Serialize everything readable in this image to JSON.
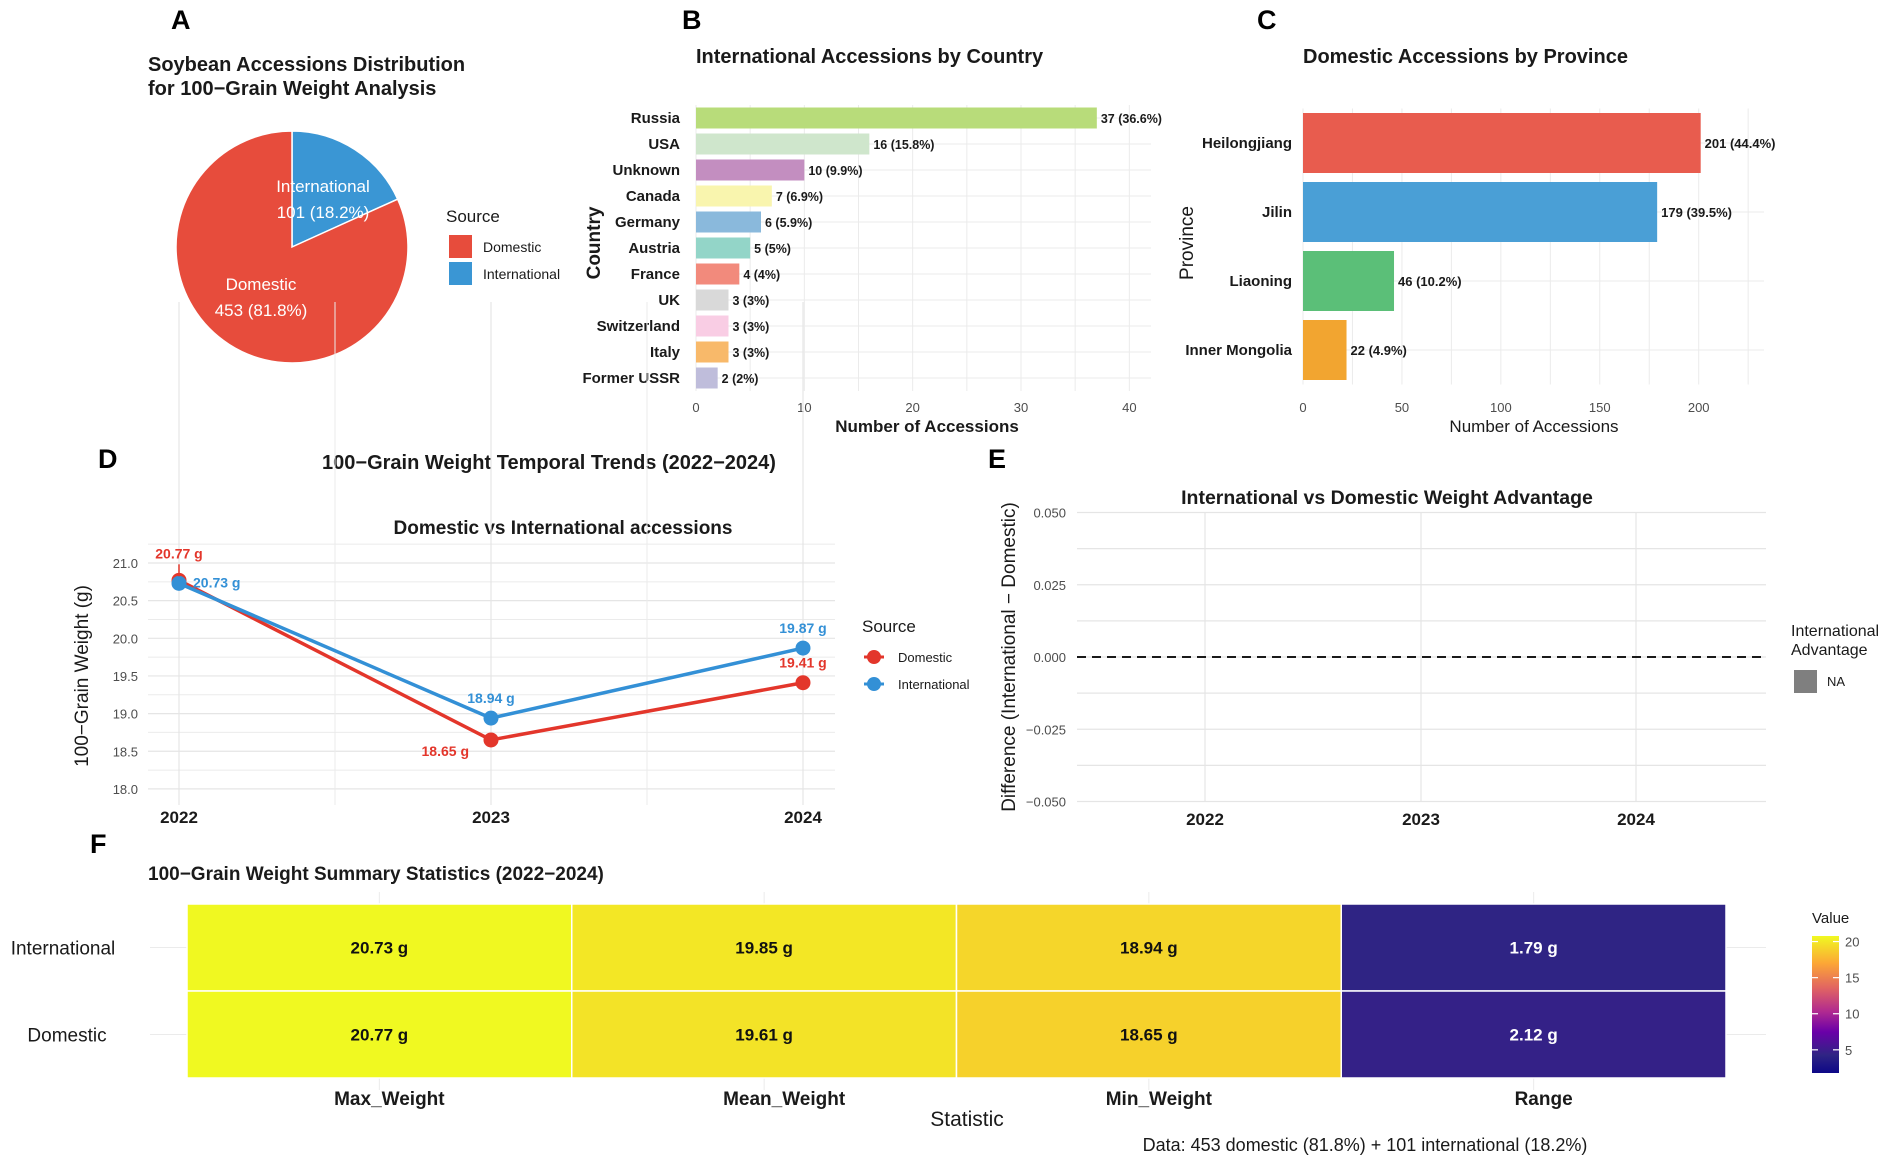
{
  "figure": {
    "panel_letters": [
      "A",
      "B",
      "C",
      "D",
      "E",
      "F"
    ]
  },
  "chart_data": [
    {
      "id": "A",
      "type": "pie",
      "title_lines": [
        "Soybean Accessions Distribution",
        "for 100−Grain Weight Analysis"
      ],
      "slices": [
        {
          "name": "International",
          "value": 101,
          "percent": 18.2,
          "label_line1": "International",
          "label_line2": "101 (18.2%)",
          "color": "#3a96d4"
        },
        {
          "name": "Domestic",
          "value": 453,
          "percent": 81.8,
          "label_line1": "Domestic",
          "label_line2": "453 (81.8%)",
          "color": "#e74c3c"
        }
      ],
      "legend": {
        "title": "Source",
        "placement": "right",
        "items": [
          {
            "label": "Domestic",
            "color": "#e74c3c"
          },
          {
            "label": "International",
            "color": "#3a96d4"
          }
        ]
      }
    },
    {
      "id": "B",
      "type": "bar",
      "orientation": "horizontal",
      "title": "International Accessions by Country",
      "xlabel": "Number of Accessions",
      "ylabel": "Country",
      "xlim": [
        0,
        42
      ],
      "xticks": [
        0,
        10,
        20,
        30,
        40
      ],
      "categories": [
        "Russia",
        "USA",
        "Unknown",
        "Canada",
        "Germany",
        "Austria",
        "France",
        "UK",
        "Switzerland",
        "Italy",
        "Former USSR"
      ],
      "values": [
        37,
        16,
        10,
        7,
        6,
        5,
        4,
        3,
        3,
        3,
        2
      ],
      "labels": [
        "37 (36.6%)",
        "16 (15.8%)",
        "10 (9.9%)",
        "7 (6.9%)",
        "6 (5.9%)",
        "5 (5%)",
        "4 (4%)",
        "3 (3%)",
        "3 (3%)",
        "3 (3%)",
        "2 (2%)"
      ],
      "colors": [
        "#b8dc7a",
        "#cfe6cc",
        "#c38ec0",
        "#f9f5ae",
        "#8ab9dc",
        "#93d5c8",
        "#f28a7c",
        "#d9d9d9",
        "#f9cde4",
        "#f8b96a",
        "#bfbddb"
      ]
    },
    {
      "id": "C",
      "type": "bar",
      "orientation": "horizontal",
      "title": "Domestic Accessions by Province",
      "xlabel": "Number of Accessions",
      "ylabel": "Province",
      "xlim": [
        0,
        233
      ],
      "xticks": [
        0,
        50,
        100,
        150,
        200
      ],
      "categories": [
        "Heilongjiang",
        "Jilin",
        "Liaoning",
        "Inner Mongolia"
      ],
      "values": [
        201,
        179,
        46,
        22
      ],
      "labels": [
        "201 (44.4%)",
        "179 (39.5%)",
        "46 (10.2%)",
        "22 (4.9%)"
      ],
      "colors": [
        "#e85c4e",
        "#4a9fd6",
        "#5bbf78",
        "#f2a530"
      ]
    },
    {
      "id": "D",
      "type": "line",
      "title": "100−Grain Weight Temporal Trends (2022−2024)",
      "subtitle": "Domestic vs International accessions",
      "xlabel": "",
      "ylabel": "100−Grain Weight (g)",
      "x": [
        "2022",
        "2023",
        "2024"
      ],
      "ylim": [
        17.9,
        21.3
      ],
      "yticks": [
        18.0,
        18.5,
        19.0,
        19.5,
        20.0,
        20.5,
        21.0
      ],
      "ytick_labels": [
        "18.0",
        "18.5",
        "19.0",
        "19.5",
        "20.0",
        "20.5",
        "21.0"
      ],
      "series": [
        {
          "name": "Domestic",
          "values": [
            20.77,
            18.65,
            19.41
          ],
          "labels": [
            "20.77 g",
            "18.65 g",
            "19.41 g"
          ],
          "color": "#e3362b"
        },
        {
          "name": "International",
          "values": [
            20.73,
            18.94,
            19.87
          ],
          "labels": [
            "20.73 g",
            "18.94 g",
            "19.87 g"
          ],
          "color": "#3390d6"
        }
      ],
      "legend": {
        "title": "Source",
        "placement": "right",
        "items": [
          "Domestic",
          "International"
        ]
      },
      "grid": true
    },
    {
      "id": "E",
      "type": "bar",
      "title": "International vs Domestic Weight Advantage",
      "xlabel": "",
      "ylabel": "Difference (International − Domestic)",
      "x": [
        "2022",
        "2023",
        "2024"
      ],
      "values": [],
      "ylim": [
        -0.05,
        0.05
      ],
      "yticks": [
        -0.05,
        -0.025,
        0.0,
        0.025,
        0.05
      ],
      "ytick_labels": [
        "−0.050",
        "−0.025",
        "0.000",
        "0.025",
        "0.050"
      ],
      "reference_line": {
        "y": 0,
        "style": "dashed"
      },
      "legend": {
        "title_lines": [
          "International",
          "Advantage"
        ],
        "placement": "right",
        "items": [
          {
            "label": "NA",
            "color": "#7f7f7f"
          }
        ]
      },
      "grid": true
    },
    {
      "id": "F",
      "type": "heatmap",
      "title": "100−Grain Weight Summary Statistics (2022−2024)",
      "xlabel": "Statistic",
      "ylabel": "",
      "columns": [
        "Max_Weight",
        "Mean_Weight",
        "Min_Weight",
        "Range"
      ],
      "rows": [
        "International",
        "Domestic"
      ],
      "values": [
        [
          20.73,
          19.85,
          18.94,
          1.79
        ],
        [
          20.77,
          19.61,
          18.65,
          2.12
        ]
      ],
      "cell_labels": [
        [
          "20.73 g",
          "19.85 g",
          "18.94 g",
          "1.79 g"
        ],
        [
          "20.77 g",
          "19.61 g",
          "18.65 g",
          "2.12 g"
        ]
      ],
      "colorbar": {
        "title": "Value",
        "ticks": [
          5,
          10,
          15,
          20
        ],
        "range": [
          1.79,
          20.77
        ],
        "colormap": "plasma"
      },
      "caption": "Data: 453 domestic (81.8%) + 101 international (18.2%)"
    }
  ]
}
